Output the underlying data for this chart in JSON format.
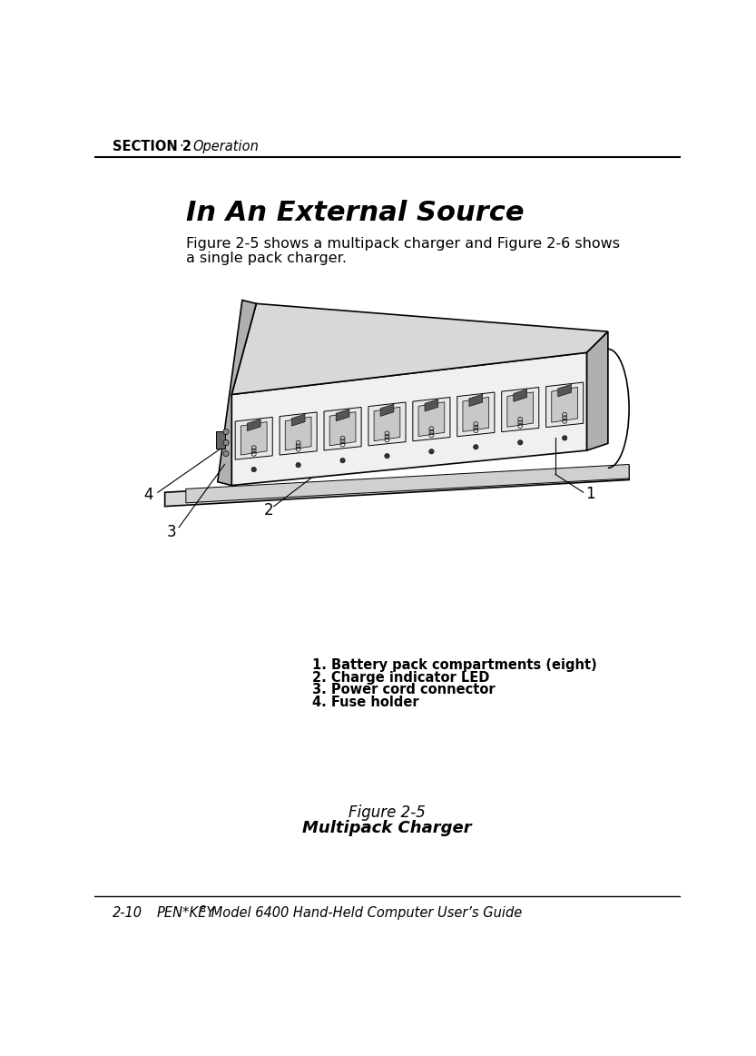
{
  "page_width": 8.33,
  "page_height": 11.63,
  "bg_color": "#ffffff",
  "header_text_bold": "SECTION 2",
  "header_separator": "·",
  "header_text_italic": "Operation",
  "section_title": "In An External Source",
  "body_text_line1": "Figure 2-5 shows a multipack charger and Figure 2-6 shows",
  "body_text_line2": "a single pack charger.",
  "list_items": [
    "1. Battery pack compartments (eight)",
    "2. Charge indicator LED",
    "3. Power cord connector",
    "4. Fuse holder"
  ],
  "figure_caption_line1": "Figure 2-5",
  "figure_caption_line2": "Multipack Charger",
  "footer_page": "2-10",
  "footer_product": "PEN*KEY",
  "footer_superscript": "R",
  "footer_rest": " Model 6400 Hand-Held Computer User’s Guide",
  "text_color": "#000000",
  "header_font_size": 10.5,
  "title_font_size": 22,
  "body_font_size": 11.5,
  "list_font_size": 10.5,
  "caption_font_size": 12,
  "footer_font_size": 10.5,
  "charger_line_color": "#000000",
  "charger_fill_light": "#f0f0f0",
  "charger_fill_mid": "#d8d8d8",
  "charger_fill_dark": "#b0b0b0",
  "charger_fill_shadow": "#888888"
}
